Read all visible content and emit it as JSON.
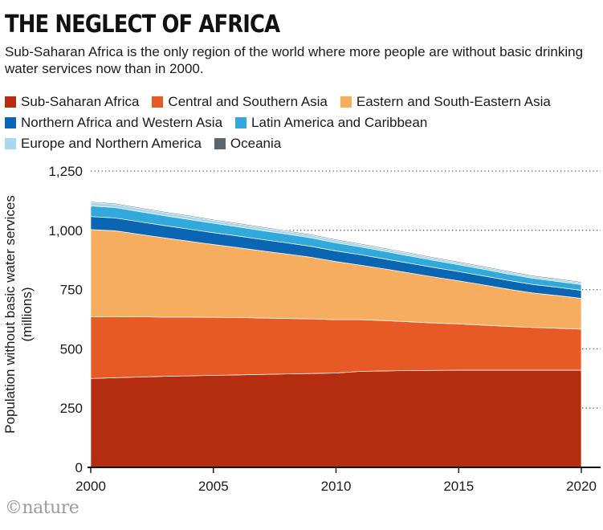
{
  "header": {
    "title": "THE NEGLECT OF AFRICA",
    "subtitle": "Sub-Saharan Africa is the only region of the world where more people are without basic drinking water services now than in 2000."
  },
  "legend": {
    "rows": [
      [
        {
          "label": "Sub-Saharan Africa",
          "color": "#b52d10"
        },
        {
          "label": "Central and Southern Asia",
          "color": "#e75a26"
        },
        {
          "label": "Eastern and South-Eastern Asia",
          "color": "#f6ad60"
        }
      ],
      [
        {
          "label": "Northern Africa and Western Asia",
          "color": "#0a66b2"
        },
        {
          "label": "Latin America and Caribbean",
          "color": "#32a9dc"
        }
      ],
      [
        {
          "label": "Europe and Northern America",
          "color": "#a8d8f0"
        },
        {
          "label": "Oceania",
          "color": "#5a6670"
        }
      ]
    ]
  },
  "brand": "©nature",
  "chart_data": {
    "type": "area",
    "stacked": true,
    "title": "THE NEGLECT OF AFRICA",
    "ylabel": "Population without basic water services (millions)",
    "xlabel": "",
    "x": [
      2000,
      2001,
      2002,
      2003,
      2004,
      2005,
      2006,
      2007,
      2008,
      2009,
      2010,
      2011,
      2012,
      2013,
      2014,
      2015,
      2016,
      2017,
      2018,
      2019,
      2020
    ],
    "xticks": [
      "2000",
      "2005",
      "2010",
      "2015",
      "2020"
    ],
    "yticks": [
      "0",
      "250",
      "500",
      "750",
      "1,000",
      "1,250"
    ],
    "ylim": [
      0,
      1250
    ],
    "xlim": [
      2000,
      2020
    ],
    "grid": "dotted horizontal at 250, 500, 750, 1,000 and 1,250",
    "series": [
      {
        "name": "Sub-Saharan Africa",
        "color": "#b52d10",
        "values": [
          375,
          378,
          381,
          384,
          386,
          388,
          390,
          392,
          394,
          396,
          398,
          405,
          407,
          408,
          409,
          410,
          410,
          410,
          410,
          410,
          410
        ]
      },
      {
        "name": "Central and Southern Asia",
        "color": "#e75a26",
        "values": [
          260,
          258,
          254,
          250,
          248,
          245,
          242,
          238,
          234,
          230,
          225,
          218,
          212,
          206,
          200,
          195,
          190,
          185,
          180,
          177,
          173
        ]
      },
      {
        "name": "Eastern and South-Eastern Asia",
        "color": "#f6ad60",
        "values": [
          368,
          362,
          348,
          334,
          320,
          307,
          295,
          283,
          272,
          260,
          245,
          230,
          218,
          206,
          194,
          182,
          170,
          157,
          146,
          138,
          130
        ]
      },
      {
        "name": "Northern Africa and Western Asia",
        "color": "#0a66b2",
        "values": [
          55,
          54,
          53,
          52,
          51,
          50,
          49,
          48,
          47,
          46,
          45,
          44,
          42,
          41,
          40,
          39,
          38,
          37,
          36,
          35,
          34
        ]
      },
      {
        "name": "Latin America and Caribbean",
        "color": "#32a9dc",
        "values": [
          45,
          44,
          43,
          42,
          41,
          40,
          39,
          38,
          37,
          36,
          34,
          33,
          32,
          31,
          30,
          29,
          28,
          27,
          26,
          25,
          24
        ]
      },
      {
        "name": "Europe and Northern America",
        "color": "#a8d8f0",
        "values": [
          14,
          14,
          13,
          13,
          13,
          12,
          12,
          12,
          11,
          11,
          11,
          10,
          10,
          10,
          9,
          9,
          9,
          9,
          8,
          8,
          8
        ]
      },
      {
        "name": "Oceania",
        "color": "#5a6670",
        "values": [
          4,
          4,
          4,
          4,
          4,
          4,
          4,
          4,
          4,
          4,
          4,
          4,
          4,
          4,
          4,
          4,
          4,
          4,
          4,
          4,
          4
        ]
      }
    ]
  }
}
